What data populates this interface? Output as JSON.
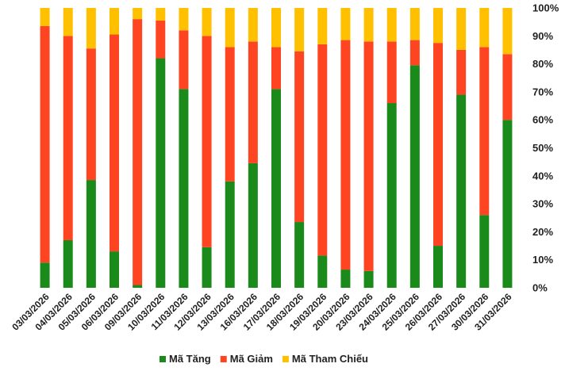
{
  "chart_data": {
    "type": "bar",
    "stacked": true,
    "percent_axis": true,
    "categories": [
      "03/03/2026",
      "04/03/2026",
      "05/03/2026",
      "06/03/2026",
      "09/03/2026",
      "10/03/2026",
      "11/03/2026",
      "12/03/2026",
      "13/03/2026",
      "16/03/2026",
      "17/03/2026",
      "18/03/2026",
      "19/03/2026",
      "20/03/2026",
      "23/03/2026",
      "24/03/2026",
      "25/03/2026",
      "26/03/2026",
      "27/03/2026",
      "30/03/2026",
      "31/03/2026"
    ],
    "series": [
      {
        "name": "Mã Tăng",
        "color": "#1a8a1a",
        "values": [
          9,
          17,
          38.5,
          13,
          1,
          82,
          71,
          14.5,
          38,
          44.5,
          71,
          23.5,
          11.5,
          6.5,
          6,
          66,
          79.5,
          15,
          69,
          26,
          60
        ]
      },
      {
        "name": "Mã Giảm",
        "color": "#ff4422",
        "values": [
          84.5,
          73,
          47,
          77.5,
          95,
          13.5,
          21,
          75.5,
          48,
          43.5,
          15,
          61,
          75.5,
          82,
          82,
          22,
          9,
          72.5,
          16,
          60,
          23.5
        ]
      },
      {
        "name": "Mã Tham Chiếu",
        "color": "#ffc000",
        "values": [
          6.5,
          10,
          14.5,
          9.5,
          4,
          4.5,
          8,
          10,
          14,
          12,
          14,
          15.5,
          13,
          11.5,
          12,
          12,
          11.5,
          12.5,
          15,
          14,
          16.5
        ]
      }
    ],
    "y_ticks": [
      "0%",
      "10%",
      "20%",
      "30%",
      "40%",
      "50%",
      "60%",
      "70%",
      "80%",
      "90%",
      "100%"
    ],
    "ylim": [
      0,
      100
    ],
    "grid": false,
    "legend_position": "bottom",
    "title": "",
    "xlabel": "",
    "ylabel": ""
  }
}
